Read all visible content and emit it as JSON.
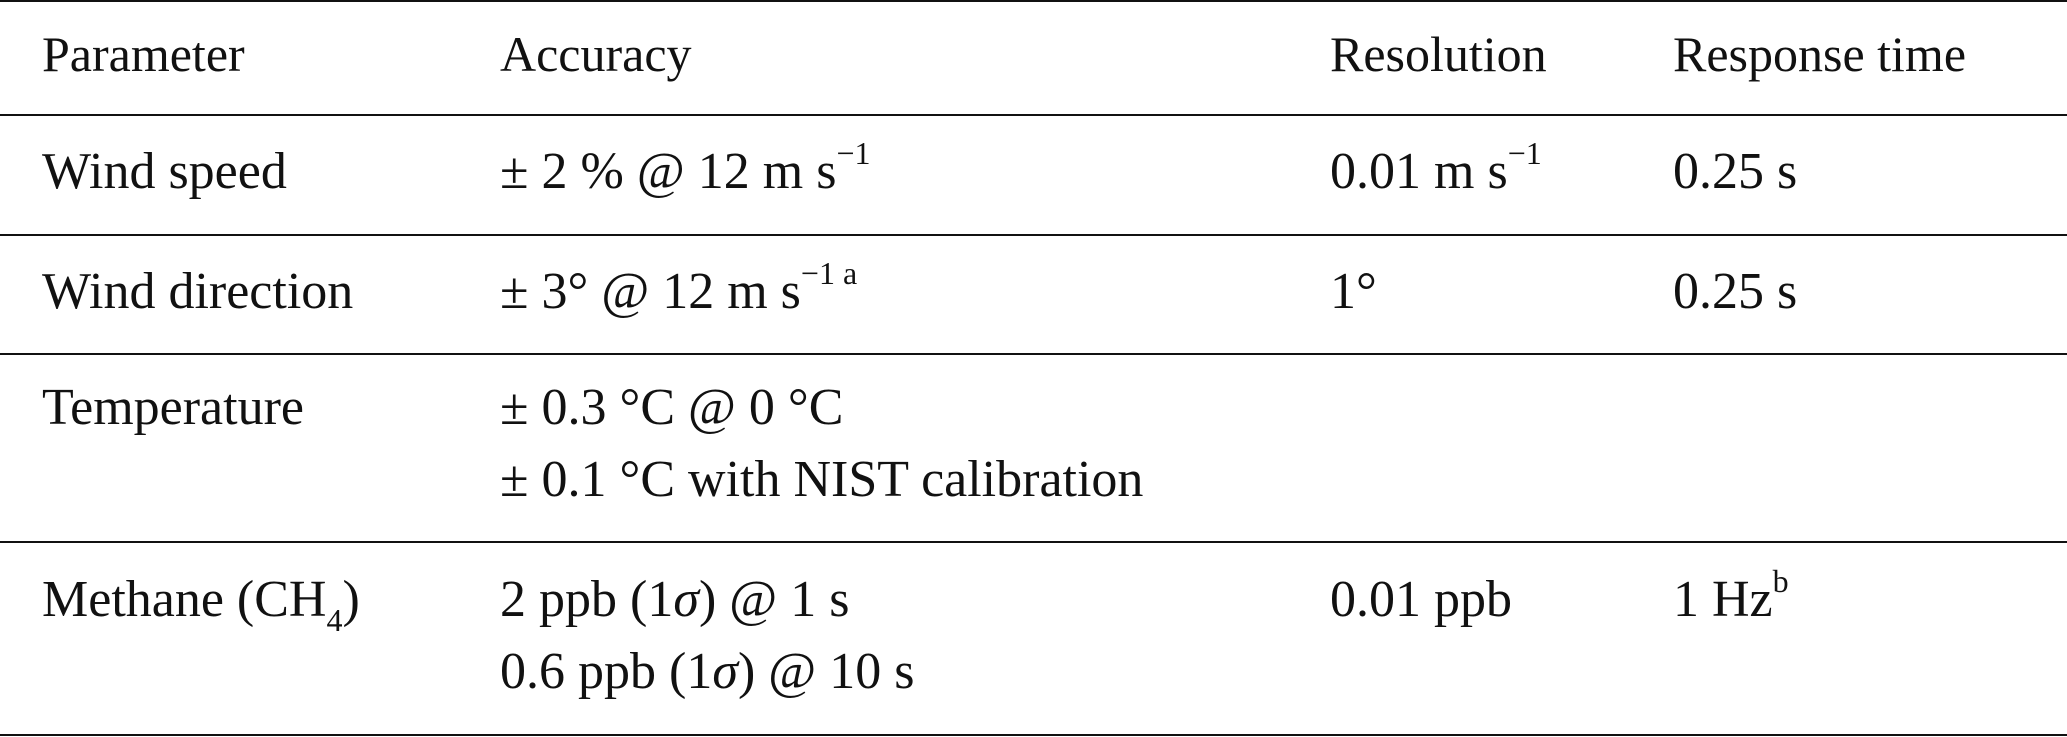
{
  "table": {
    "headers": {
      "parameter": "Parameter",
      "accuracy": "Accuracy",
      "resolution": "Resolution",
      "response_time": "Response time"
    },
    "rows": [
      {
        "parameter": "Wind speed",
        "accuracy": {
          "text": "± 2 % @ 12 m s",
          "sup": "−1"
        },
        "resolution": {
          "text": "0.01 m s",
          "sup": "−1"
        },
        "response_time": "0.25 s"
      },
      {
        "parameter": "Wind direction",
        "accuracy": {
          "text": "± 3° @ 12 m s",
          "sup": "−1 a"
        },
        "resolution": "1°",
        "response_time": "0.25 s"
      },
      {
        "parameter": "Temperature",
        "accuracy_lines": [
          "± 0.3 °C @ 0 °C",
          "± 0.1 °C with NIST calibration"
        ],
        "resolution": "",
        "response_time": ""
      },
      {
        "parameter": {
          "text": "Methane (CH",
          "sub": "4",
          "after": ")"
        },
        "accuracy_lines": [
          {
            "pre": "2 ppb (1",
            "sigma": "σ",
            "post": ") @ 1 s"
          },
          {
            "pre": "0.6 ppb (1",
            "sigma": "σ",
            "post": ") @ 10 s"
          }
        ],
        "resolution": "0.01 ppb",
        "response_time": {
          "text": "1 Hz",
          "sup": "b"
        }
      }
    ]
  }
}
